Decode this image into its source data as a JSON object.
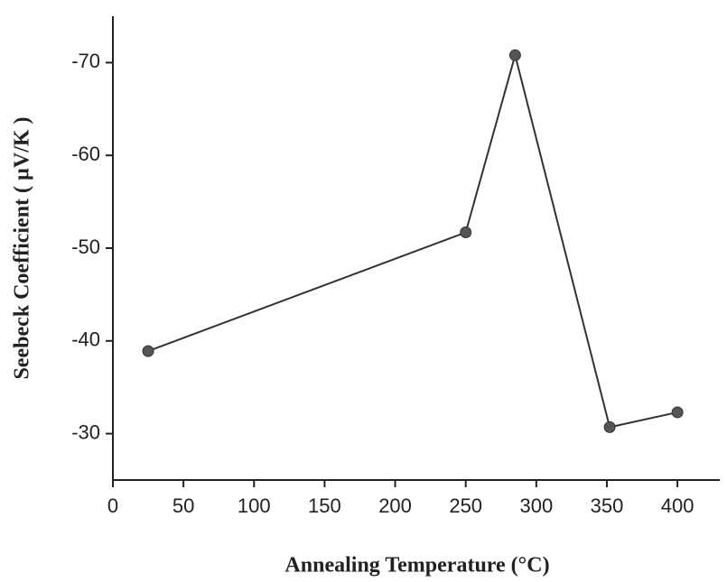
{
  "chart_data": {
    "type": "line",
    "x_label": "Annealing Temperature (°C)",
    "y_label": "Seebeck Coefficient ( µV/K )",
    "series": [
      {
        "color": "#333333",
        "x": [
          25,
          250,
          285,
          352,
          400
        ],
        "values": [
          -38.9,
          -51.7,
          -70.8,
          -30.7,
          -32.3
        ]
      }
    ],
    "xlim": [
      0,
      430
    ],
    "xticks": [
      0,
      50,
      100,
      150,
      200,
      250,
      300,
      350,
      400
    ],
    "ylim": [
      -25,
      -75
    ],
    "yticks": [
      -30,
      -40,
      -50,
      -60,
      -70
    ]
  }
}
